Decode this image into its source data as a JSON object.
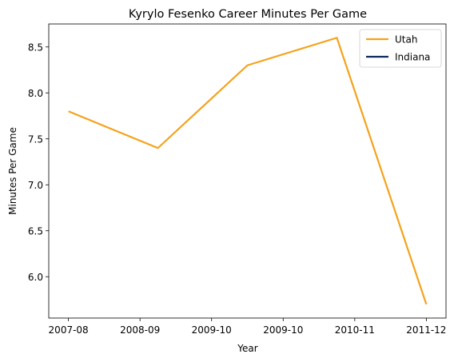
{
  "chart_data": {
    "type": "line",
    "title": "Kyrylo Fesenko Career Minutes Per Game",
    "xlabel": "Year",
    "ylabel": "Minutes Per Game",
    "ylim": [
      5.55,
      8.75
    ],
    "grid": false,
    "legend_position": "top-right",
    "x_tick_labels": [
      "2007-08",
      "2008-09",
      "2009-10",
      "2009-10",
      "2010-11",
      "2011-12"
    ],
    "y_ticks": [
      6.0,
      6.5,
      7.0,
      7.5,
      8.0,
      8.5
    ],
    "series": [
      {
        "name": "Utah",
        "color": "#f5a21b",
        "points": [
          {
            "x": 0.0,
            "y": 7.8
          },
          {
            "x": 1.0,
            "y": 7.4
          },
          {
            "x": 2.0,
            "y": 8.3
          },
          {
            "x": 3.0,
            "y": 8.6
          },
          {
            "x": 4.0,
            "y": 5.7
          }
        ]
      },
      {
        "name": "Indiana",
        "color": "#0a2a5a",
        "points": []
      }
    ]
  }
}
